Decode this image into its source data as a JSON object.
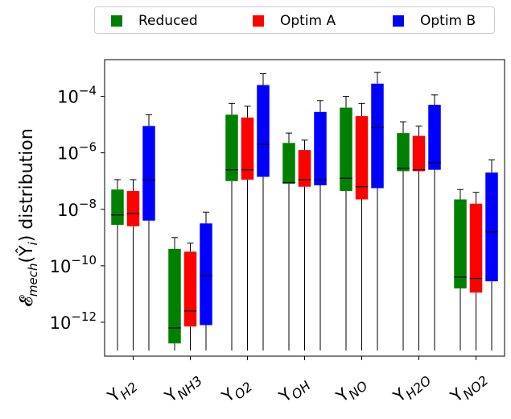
{
  "chart_data": {
    "type": "boxplot",
    "yscale": "log",
    "ylim_exponents": [
      -13.2,
      -2.7
    ],
    "ylabel": "𝓔",
    "ylabel_sub": "mech",
    "ylabel_paren": "(Ŷ",
    "ylabel_sub2": "i",
    "ylabel_tail": ") distribution",
    "y_ticks": [
      {
        "exp": -12,
        "base": "10",
        "sup": "−12"
      },
      {
        "exp": -10,
        "base": "10",
        "sup": "−10"
      },
      {
        "exp": -8,
        "base": "10",
        "sup": "−8"
      },
      {
        "exp": -6,
        "base": "10",
        "sup": "−6"
      },
      {
        "exp": -4,
        "base": "10",
        "sup": "−4"
      }
    ],
    "categories": [
      {
        "main": "Y",
        "sub": "H2"
      },
      {
        "main": "Y",
        "sub": "NH3"
      },
      {
        "main": "Y",
        "sub": "O2"
      },
      {
        "main": "Y",
        "sub": "OH"
      },
      {
        "main": "Y",
        "sub": "NO"
      },
      {
        "main": "Y",
        "sub": "H2O"
      },
      {
        "main": "Y",
        "sub": "NO2"
      }
    ],
    "series": [
      {
        "name": "Reduced",
        "color": "#008000",
        "boxes": [
          {
            "whislo": -13.0,
            "q1": -8.55,
            "med": -8.2,
            "q3": -7.3,
            "whishi": -6.95
          },
          {
            "whislo": -13.0,
            "q1": -12.75,
            "med": -12.2,
            "q3": -9.4,
            "whishi": -9.0
          },
          {
            "whislo": -13.0,
            "q1": -7.0,
            "med": -6.6,
            "q3": -4.65,
            "whishi": -4.25
          },
          {
            "whislo": -13.0,
            "q1": -7.1,
            "med": -7.05,
            "q3": -5.65,
            "whishi": -5.3
          },
          {
            "whislo": -13.0,
            "q1": -7.35,
            "med": -6.9,
            "q3": -4.4,
            "whishi": -4.0
          },
          {
            "whislo": -13.0,
            "q1": -6.65,
            "med": -6.55,
            "q3": -5.3,
            "whishi": -4.9
          },
          {
            "whislo": -13.0,
            "q1": -10.8,
            "med": -10.4,
            "q3": -7.65,
            "whishi": -7.3
          }
        ]
      },
      {
        "name": "Optim A",
        "color": "#ff0000",
        "boxes": [
          {
            "whislo": -13.0,
            "q1": -8.6,
            "med": -8.15,
            "q3": -7.35,
            "whishi": -6.95
          },
          {
            "whislo": -13.0,
            "q1": -12.15,
            "med": -11.6,
            "q3": -9.5,
            "whishi": -9.2
          },
          {
            "whislo": -13.0,
            "q1": -6.95,
            "med": -6.6,
            "q3": -4.75,
            "whishi": -4.35
          },
          {
            "whislo": -13.0,
            "q1": -7.2,
            "med": -6.95,
            "q3": -5.9,
            "whishi": -5.55
          },
          {
            "whislo": -13.0,
            "q1": -7.65,
            "med": -7.2,
            "q3": -4.7,
            "whishi": -4.25
          },
          {
            "whislo": -13.0,
            "q1": -6.65,
            "med": -6.6,
            "q3": -5.4,
            "whishi": -5.05
          },
          {
            "whislo": -13.0,
            "q1": -10.95,
            "med": -10.45,
            "q3": -7.8,
            "whishi": -7.4
          }
        ]
      },
      {
        "name": "Optim B",
        "color": "#0000ff",
        "boxes": [
          {
            "whislo": -13.0,
            "q1": -8.4,
            "med": -6.95,
            "q3": -5.05,
            "whishi": -4.65
          },
          {
            "whislo": -13.0,
            "q1": -12.1,
            "med": -10.35,
            "q3": -8.5,
            "whishi": -8.1
          },
          {
            "whislo": -13.0,
            "q1": -6.85,
            "med": -5.7,
            "q3": -3.6,
            "whishi": -3.2
          },
          {
            "whislo": -13.0,
            "q1": -7.15,
            "med": -6.95,
            "q3": -4.55,
            "whishi": -4.15
          },
          {
            "whislo": -13.0,
            "q1": -7.25,
            "med": -5.1,
            "q3": -3.55,
            "whishi": -3.15
          },
          {
            "whislo": -13.0,
            "q1": -6.6,
            "med": -6.35,
            "q3": -4.3,
            "whishi": -3.95
          },
          {
            "whislo": -13.0,
            "q1": -10.55,
            "med": -8.8,
            "q3": -6.7,
            "whishi": -6.25
          }
        ]
      }
    ],
    "legend_position": "top-center",
    "grid": false
  }
}
